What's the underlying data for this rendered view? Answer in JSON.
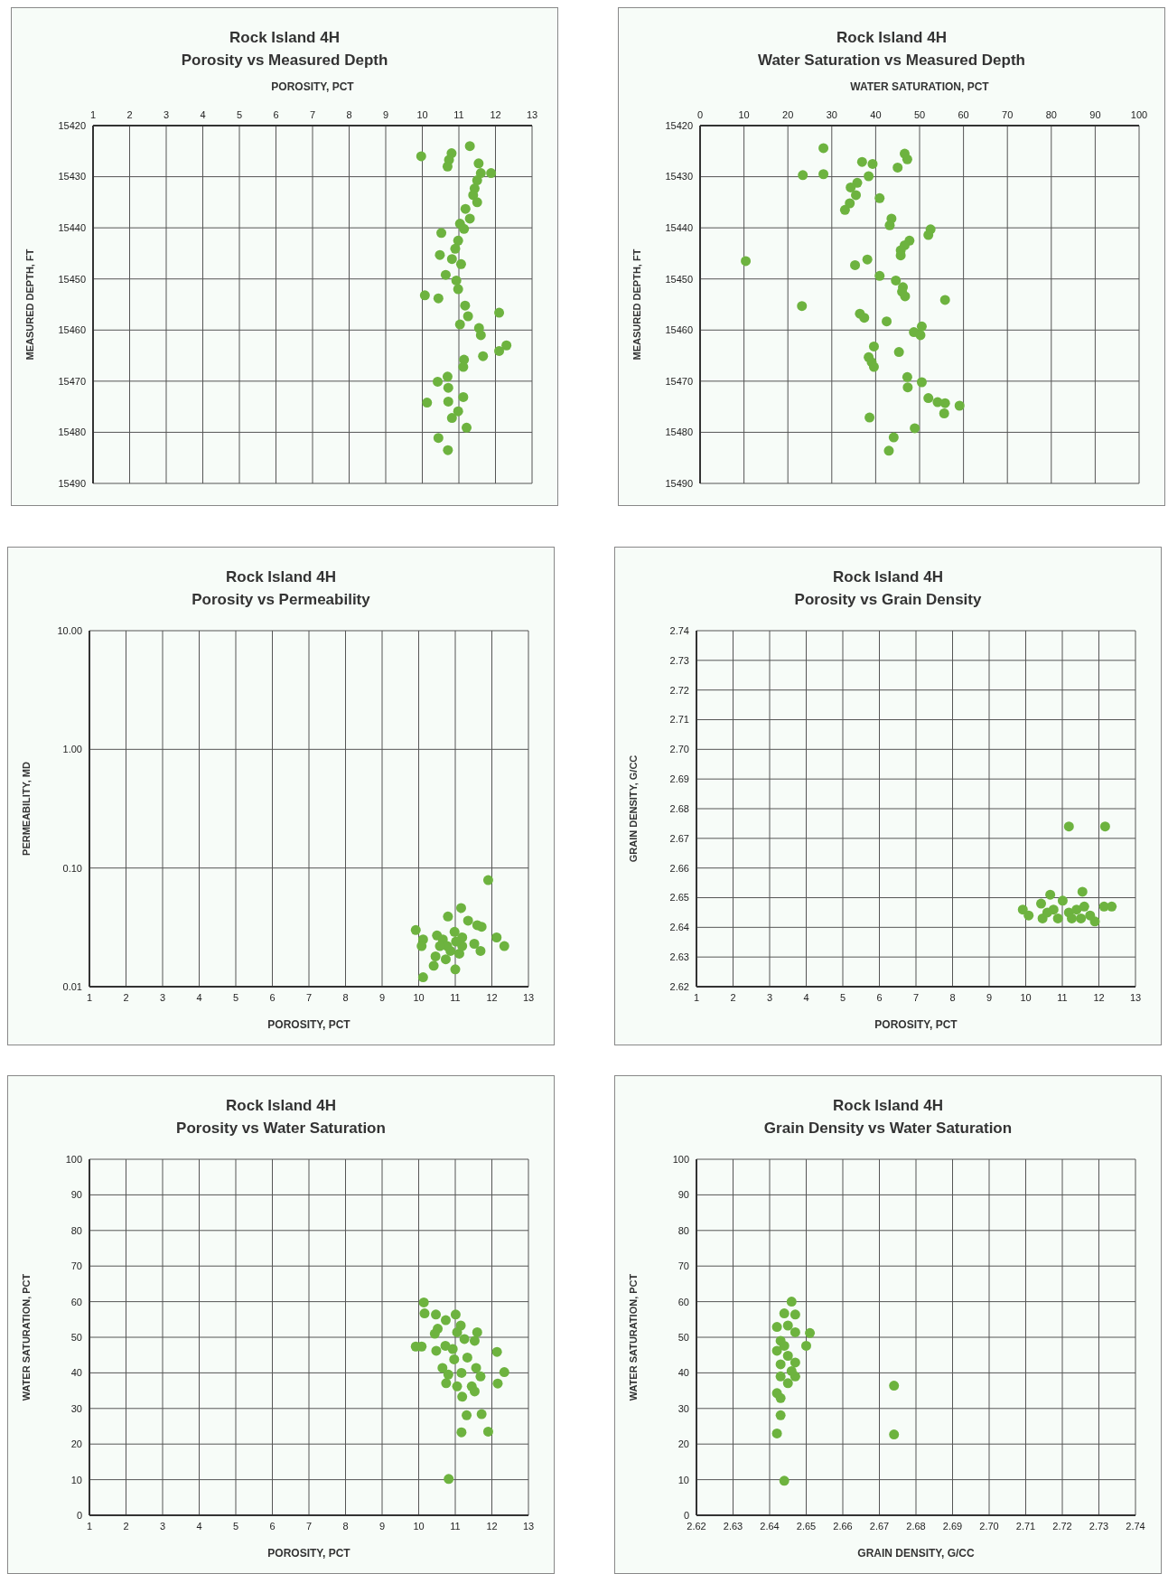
{
  "chart_data": [
    {
      "type": "scatter",
      "title": "Rock Island 4H",
      "subtitle": "Porosity  vs  Measured Depth",
      "xlabel": "POROSITY,  PCT",
      "ylabel": "MEASURED DEPTH,  FT",
      "xlim": [
        1,
        13
      ],
      "xticks": [
        1,
        2,
        3,
        4,
        5,
        6,
        7,
        8,
        9,
        10,
        11,
        12,
        13
      ],
      "ylim": [
        15490,
        15420
      ],
      "yticks": [
        15420,
        15430,
        15440,
        15450,
        15460,
        15470,
        15480,
        15490
      ],
      "grid": true,
      "marker": "circle",
      "series": [
        {
          "color": "#6db33f",
          "x": [
            9.97,
            10.8,
            10.73,
            10.69,
            11.3,
            11.54,
            11.6,
            11.88,
            11.5,
            11.43,
            11.39,
            11.5,
            11.18,
            11.3,
            11.03,
            11.14,
            10.52,
            10.98,
            10.9,
            10.48,
            10.81,
            11.06,
            10.64,
            10.93,
            10.98,
            10.07,
            10.44,
            11.17,
            11.25,
            11.03,
            12.1,
            11.55,
            11.6,
            12.3,
            12.1,
            11.66,
            11.14,
            11.12,
            10.69,
            10.42,
            10.71,
            10.13,
            10.71,
            11.12,
            10.98,
            10.81,
            11.21,
            10.44,
            10.7
          ],
          "values": [
            15426,
            15425.4,
            15426.7,
            15428,
            15424,
            15427.4,
            15429.3,
            15429.3,
            15430.7,
            15432.3,
            15433.6,
            15435,
            15436.3,
            15438.2,
            15439.2,
            15440.2,
            15441,
            15442.5,
            15444.1,
            15445.3,
            15446.1,
            15447.1,
            15449.2,
            15450.3,
            15452,
            15453.2,
            15453.8,
            15455.2,
            15457.3,
            15458.9,
            15456.6,
            15459.6,
            15461,
            15463,
            15464.1,
            15465.1,
            15465.8,
            15467.2,
            15469.1,
            15470.1,
            15471.3,
            15474.2,
            15474,
            15473.1,
            15475.9,
            15477.2,
            15479.1,
            15481.1,
            15483.5
          ]
        }
      ]
    },
    {
      "type": "scatter",
      "title": "Rock Island 4H",
      "subtitle": "Water Saturation  vs  Measured Depth",
      "xlabel": "WATER SATURATION,  PCT",
      "ylabel": "MEASURED DEPTH,  FT",
      "xlim": [
        0,
        100
      ],
      "xticks": [
        0,
        10,
        20,
        30,
        40,
        50,
        60,
        70,
        80,
        90,
        100
      ],
      "ylim": [
        15490,
        15420
      ],
      "yticks": [
        15420,
        15430,
        15440,
        15450,
        15460,
        15470,
        15480,
        15490
      ],
      "grid": true,
      "marker": "circle",
      "series": [
        {
          "color": "#6db33f",
          "x": [
            28.1,
            23.4,
            28.1,
            36.9,
            39.3,
            38.4,
            45,
            46.6,
            47.2,
            35.8,
            34.3,
            35.5,
            34.1,
            33,
            40.9,
            43.6,
            43.2,
            52.5,
            52,
            47.7,
            46.6,
            45.7,
            45.7,
            10.4,
            35.3,
            38.1,
            40.9,
            44.6,
            46.2,
            46,
            46.7,
            55.8,
            23.2,
            36.4,
            37.4,
            42.5,
            48.7,
            50.5,
            50.2,
            39.6,
            45.3,
            38.4,
            39.1,
            39.6,
            47.2,
            47.3,
            50.5,
            52,
            54.1,
            55.8,
            55.6,
            59.1,
            38.6,
            48.9,
            44.1,
            43
          ],
          "values": [
            15424.4,
            15429.7,
            15429.5,
            15427.1,
            15427.5,
            15429.9,
            15428.2,
            15425.5,
            15426.6,
            15431.2,
            15432.1,
            15433.6,
            15435.2,
            15436.5,
            15434.2,
            15438.2,
            15439.5,
            15440.3,
            15441.4,
            15442.5,
            15443.4,
            15444.4,
            15445.4,
            15446.5,
            15447.3,
            15446.2,
            15449.4,
            15450.3,
            15451.6,
            15452.5,
            15453.4,
            15454.1,
            15455.3,
            15456.8,
            15457.6,
            15458.3,
            15460.4,
            15459.3,
            15461,
            15463.2,
            15464.3,
            15465.3,
            15466.3,
            15467.2,
            15469.2,
            15471.2,
            15470.2,
            15473.3,
            15474.1,
            15474.3,
            15476.3,
            15474.8,
            15477.1,
            15479.2,
            15481,
            15483.6
          ]
        }
      ]
    },
    {
      "type": "scatter",
      "title": "Rock Island 4H",
      "subtitle": "Porosity  vs  Permeability",
      "xlabel": "POROSITY,  PCT",
      "ylabel": "PERMEABILITY,  MD",
      "xlim": [
        1,
        13
      ],
      "xticks": [
        1,
        2,
        3,
        4,
        5,
        6,
        7,
        8,
        9,
        10,
        11,
        12,
        13
      ],
      "ylim": [
        0.01,
        10
      ],
      "yticks": [
        {
          "value": 0.01,
          "label": "0.01"
        },
        {
          "value": 0.1,
          "label": "0.10"
        },
        {
          "value": 1,
          "label": "1.00"
        },
        {
          "value": 10,
          "label": "10.00"
        }
      ],
      "log": "y",
      "grid": true,
      "marker": "circle",
      "series": [
        {
          "color": "#6db33f",
          "x": [
            11.9,
            11.16,
            10.8,
            9.92,
            10.12,
            10.08,
            10.5,
            10.66,
            10.98,
            11.19,
            11.35,
            11.6,
            11.72,
            12.13,
            12.34,
            11.52,
            11.69,
            10.87,
            11.11,
            10.46,
            10.74,
            10.41,
            11,
            10.12,
            10.78,
            11.19,
            10.58,
            11.02
          ],
          "values": [
            0.079,
            0.046,
            0.039,
            0.03,
            0.025,
            0.022,
            0.027,
            0.025,
            0.029,
            0.026,
            0.036,
            0.033,
            0.032,
            0.026,
            0.022,
            0.023,
            0.02,
            0.02,
            0.019,
            0.018,
            0.017,
            0.015,
            0.014,
            0.012,
            0.022,
            0.022,
            0.022,
            0.024
          ]
        }
      ]
    },
    {
      "type": "scatter",
      "title": "Rock Island 4H",
      "subtitle": "Porosity  vs  Grain Density",
      "xlabel": "POROSITY,  PCT",
      "ylabel": "GRAIN DENSITY,  G/CC",
      "xlim": [
        1,
        13
      ],
      "xticks": [
        1,
        2,
        3,
        4,
        5,
        6,
        7,
        8,
        9,
        10,
        11,
        12,
        13
      ],
      "ylim": [
        2.62,
        2.74
      ],
      "yticks": [
        2.62,
        2.63,
        2.64,
        2.65,
        2.66,
        2.67,
        2.68,
        2.69,
        {
          "value": 2.7,
          "label": "2.70"
        },
        2.71,
        2.72,
        2.73,
        2.74
      ],
      "grid": true,
      "marker": "circle",
      "series": [
        {
          "color": "#6db33f",
          "x": [
            11.18,
            12.17,
            11.55,
            10.67,
            9.92,
            10.08,
            10.42,
            10.46,
            10.76,
            11.01,
            11.18,
            11.39,
            11.6,
            11.76,
            11.89,
            12.14,
            12.35,
            10.88,
            11.26,
            10.59,
            11.51
          ],
          "values": [
            2.674,
            2.674,
            2.652,
            2.651,
            2.646,
            2.644,
            2.648,
            2.643,
            2.646,
            2.649,
            2.645,
            2.646,
            2.647,
            2.644,
            2.642,
            2.647,
            2.647,
            2.643,
            2.643,
            2.645,
            2.643
          ]
        }
      ]
    },
    {
      "type": "scatter",
      "title": "Rock Island 4H",
      "subtitle": "Porosity  vs  Water Saturation",
      "xlabel": "POROSITY,  PCT",
      "ylabel": "WATER SATURATION,  PCT",
      "xlim": [
        1,
        13
      ],
      "xticks": [
        1,
        2,
        3,
        4,
        5,
        6,
        7,
        8,
        9,
        10,
        11,
        12,
        13
      ],
      "ylim": [
        0,
        100
      ],
      "yticks": [
        0,
        10,
        20,
        30,
        40,
        50,
        60,
        70,
        80,
        90,
        100
      ],
      "grid": true,
      "marker": "circle",
      "series": [
        {
          "color": "#6db33f",
          "x": [
            10.14,
            10.16,
            10.47,
            10.74,
            11.01,
            11.15,
            10.52,
            10.44,
            11.05,
            11.25,
            11.6,
            11.53,
            9.92,
            10.08,
            10.48,
            10.73,
            10.93,
            10.97,
            11.33,
            12.14,
            10.65,
            10.81,
            11.17,
            11.57,
            11.69,
            12.34,
            12.16,
            10.75,
            11.05,
            11.45,
            11.53,
            11.19,
            11.31,
            11.72,
            11.17,
            11.9,
            10.82
          ],
          "values": [
            59.8,
            56.7,
            56.4,
            54.8,
            56.4,
            53.3,
            52.4,
            51,
            51.4,
            49.5,
            51.4,
            49,
            47.4,
            47.4,
            46.2,
            47.6,
            46.7,
            43.8,
            44.3,
            45.9,
            41.4,
            39.5,
            40,
            41.4,
            39,
            40.2,
            37,
            37.1,
            36.2,
            36.2,
            34.8,
            33.3,
            28.1,
            28.4,
            23.3,
            23.5,
            10.2
          ]
        }
      ]
    },
    {
      "type": "scatter",
      "title": "Rock Island 4H",
      "subtitle": "Grain Density  vs  Water Saturation",
      "xlabel": "GRAIN DENSITY,  G/CC",
      "ylabel": "WATER SATURATION,  PCT",
      "xlim": [
        2.62,
        2.74
      ],
      "xticks": [
        2.62,
        2.63,
        2.64,
        2.65,
        2.66,
        2.67,
        2.68,
        2.69,
        {
          "value": 2.7,
          "label": "2.70"
        },
        2.71,
        2.72,
        2.73,
        2.74
      ],
      "ylim": [
        0,
        100
      ],
      "yticks": [
        0,
        10,
        20,
        30,
        40,
        50,
        60,
        70,
        80,
        90,
        100
      ],
      "grid": true,
      "marker": "circle",
      "series": [
        {
          "color": "#6db33f",
          "x": [
            2.646,
            2.644,
            2.647,
            2.642,
            2.645,
            2.651,
            2.647,
            2.65,
            2.643,
            2.642,
            2.645,
            2.643,
            2.647,
            2.647,
            2.643,
            2.645,
            2.642,
            2.643,
            2.674,
            2.643,
            2.642,
            2.674,
            2.644,
            2.646,
            2.644
          ],
          "values": [
            60,
            56.7,
            56.4,
            52.9,
            53.3,
            51.2,
            51.4,
            47.6,
            49,
            46.2,
            44.8,
            42.4,
            42.9,
            39,
            39,
            37.1,
            34.3,
            32.9,
            36.4,
            28.1,
            23,
            22.7,
            9.7,
            40.5,
            47.6
          ]
        }
      ]
    }
  ]
}
